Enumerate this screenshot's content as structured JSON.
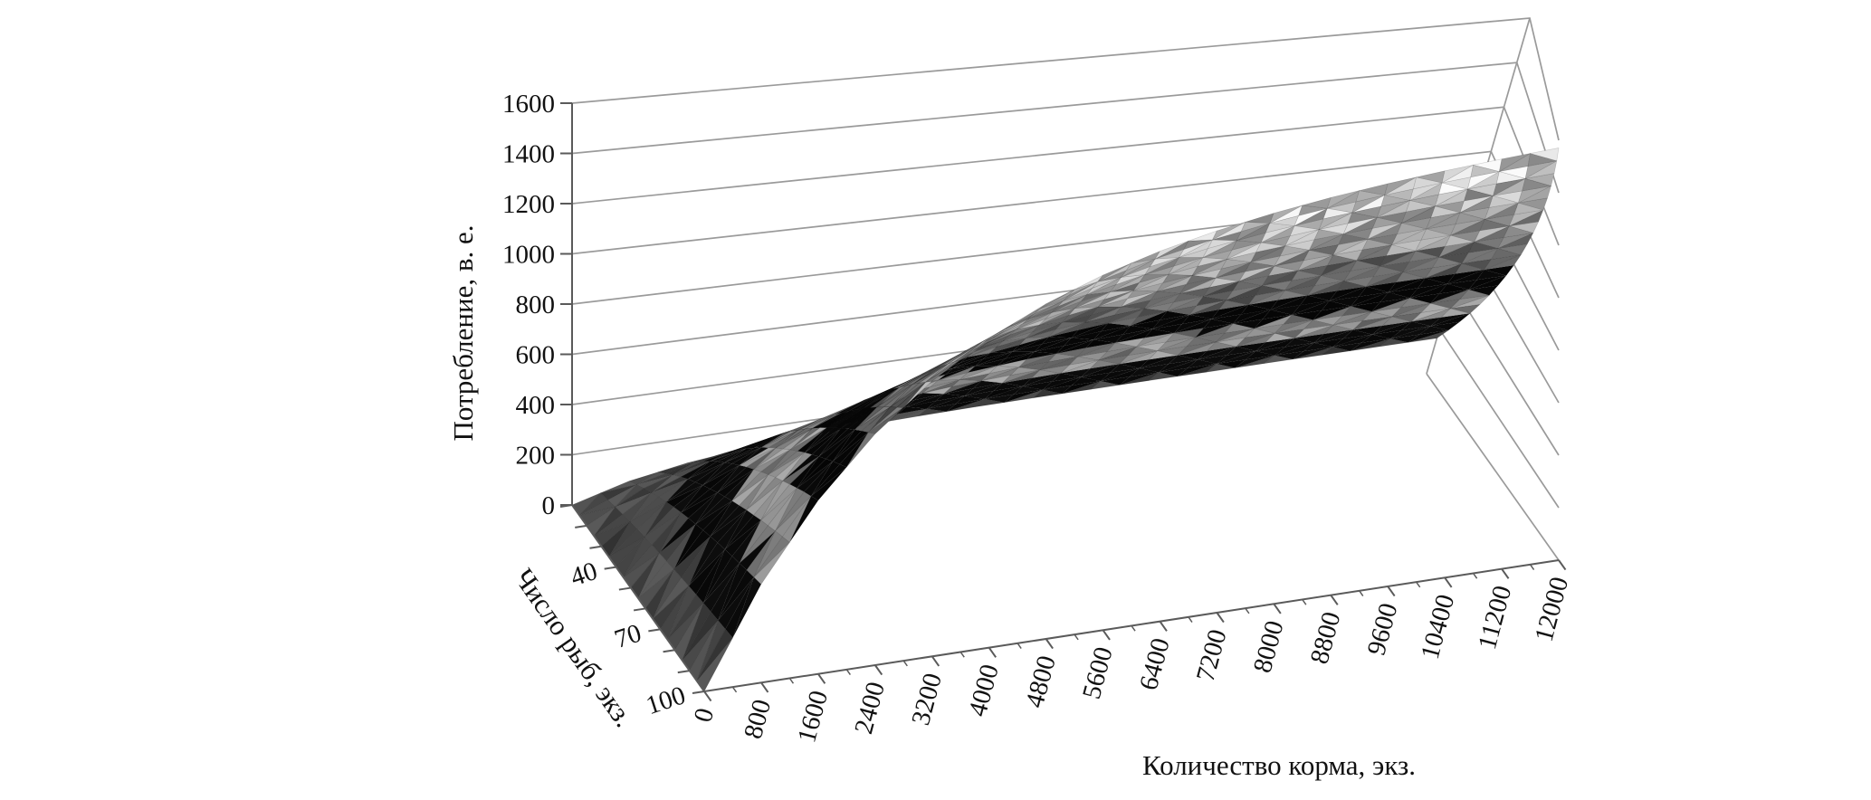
{
  "figure": {
    "background": "#ffffff"
  },
  "chart_data": {
    "type": "surface3d",
    "title": "",
    "x_axis": {
      "label": "Количество корма, экз.",
      "categories": [
        0,
        800,
        1600,
        2400,
        3200,
        4000,
        4800,
        5600,
        6400,
        7200,
        8000,
        8800,
        9600,
        10400,
        11200,
        12000
      ],
      "max": 12000,
      "minor_tick_step": 400
    },
    "depth_axis": {
      "label": "Число рыб, экз.",
      "series": [
        10,
        20,
        30,
        40,
        50,
        60,
        70,
        80,
        90,
        100
      ],
      "tick_labels": [
        "40",
        "70",
        "100"
      ]
    },
    "z_axis": {
      "label": "Потребление, в. е.",
      "ticks": [
        0,
        200,
        400,
        600,
        800,
        1000,
        1200,
        1400,
        1600
      ],
      "max": 1600
    },
    "values": [
      [
        0,
        61,
        99,
        123,
        137,
        146,
        151,
        155,
        157,
        158,
        159,
        159,
        160,
        160,
        160,
        160
      ],
      [
        0,
        115,
        188,
        236,
        266,
        285,
        298,
        306,
        311,
        314,
        316,
        318,
        318,
        319,
        319,
        320
      ],
      [
        0,
        162,
        269,
        340,
        387,
        418,
        439,
        453,
        462,
        468,
        472,
        475,
        477,
        478,
        479,
        479
      ],
      [
        0,
        203,
        341,
        436,
        501,
        545,
        575,
        596,
        610,
        619,
        626,
        630,
        633,
        635,
        637,
        638
      ],
      [
        0,
        239,
        407,
        525,
        607,
        665,
        705,
        734,
        753,
        767,
        777,
        784,
        789,
        792,
        794,
        796
      ],
      [
        0,
        272,
        467,
        607,
        707,
        779,
        830,
        867,
        893,
        912,
        926,
        935,
        942,
        947,
        951,
        954
      ],
      [
        0,
        302,
        522,
        683,
        801,
        887,
        950,
        995,
        1029,
        1053,
        1071,
        1084,
        1094,
        1101,
        1106,
        1110
      ],
      [
        0,
        328,
        572,
        754,
        889,
        989,
        1064,
        1119,
        1160,
        1191,
        1214,
        1231,
        1243,
        1253,
        1260,
        1265
      ],
      [
        0,
        352,
        619,
        820,
        971,
        1086,
        1173,
        1238,
        1288,
        1325,
        1353,
        1374,
        1390,
        1403,
        1412,
        1419
      ],
      [
        0,
        375,
        661,
        881,
        1049,
        1178,
        1277,
        1353,
        1411,
        1455,
        1489,
        1515,
        1535,
        1550,
        1562,
        1571
      ]
    ],
    "band_size": 200,
    "band_colors": [
      "#4f4f4f",
      "#0a0a0a",
      "#999999",
      "#070707",
      "#6f6f6f",
      "#ababab",
      "#c6c6c6",
      "#dedede"
    ],
    "gridline_color": "#9a9a9a",
    "axis_color": "#5a5a5a",
    "text_color": "#111111"
  }
}
